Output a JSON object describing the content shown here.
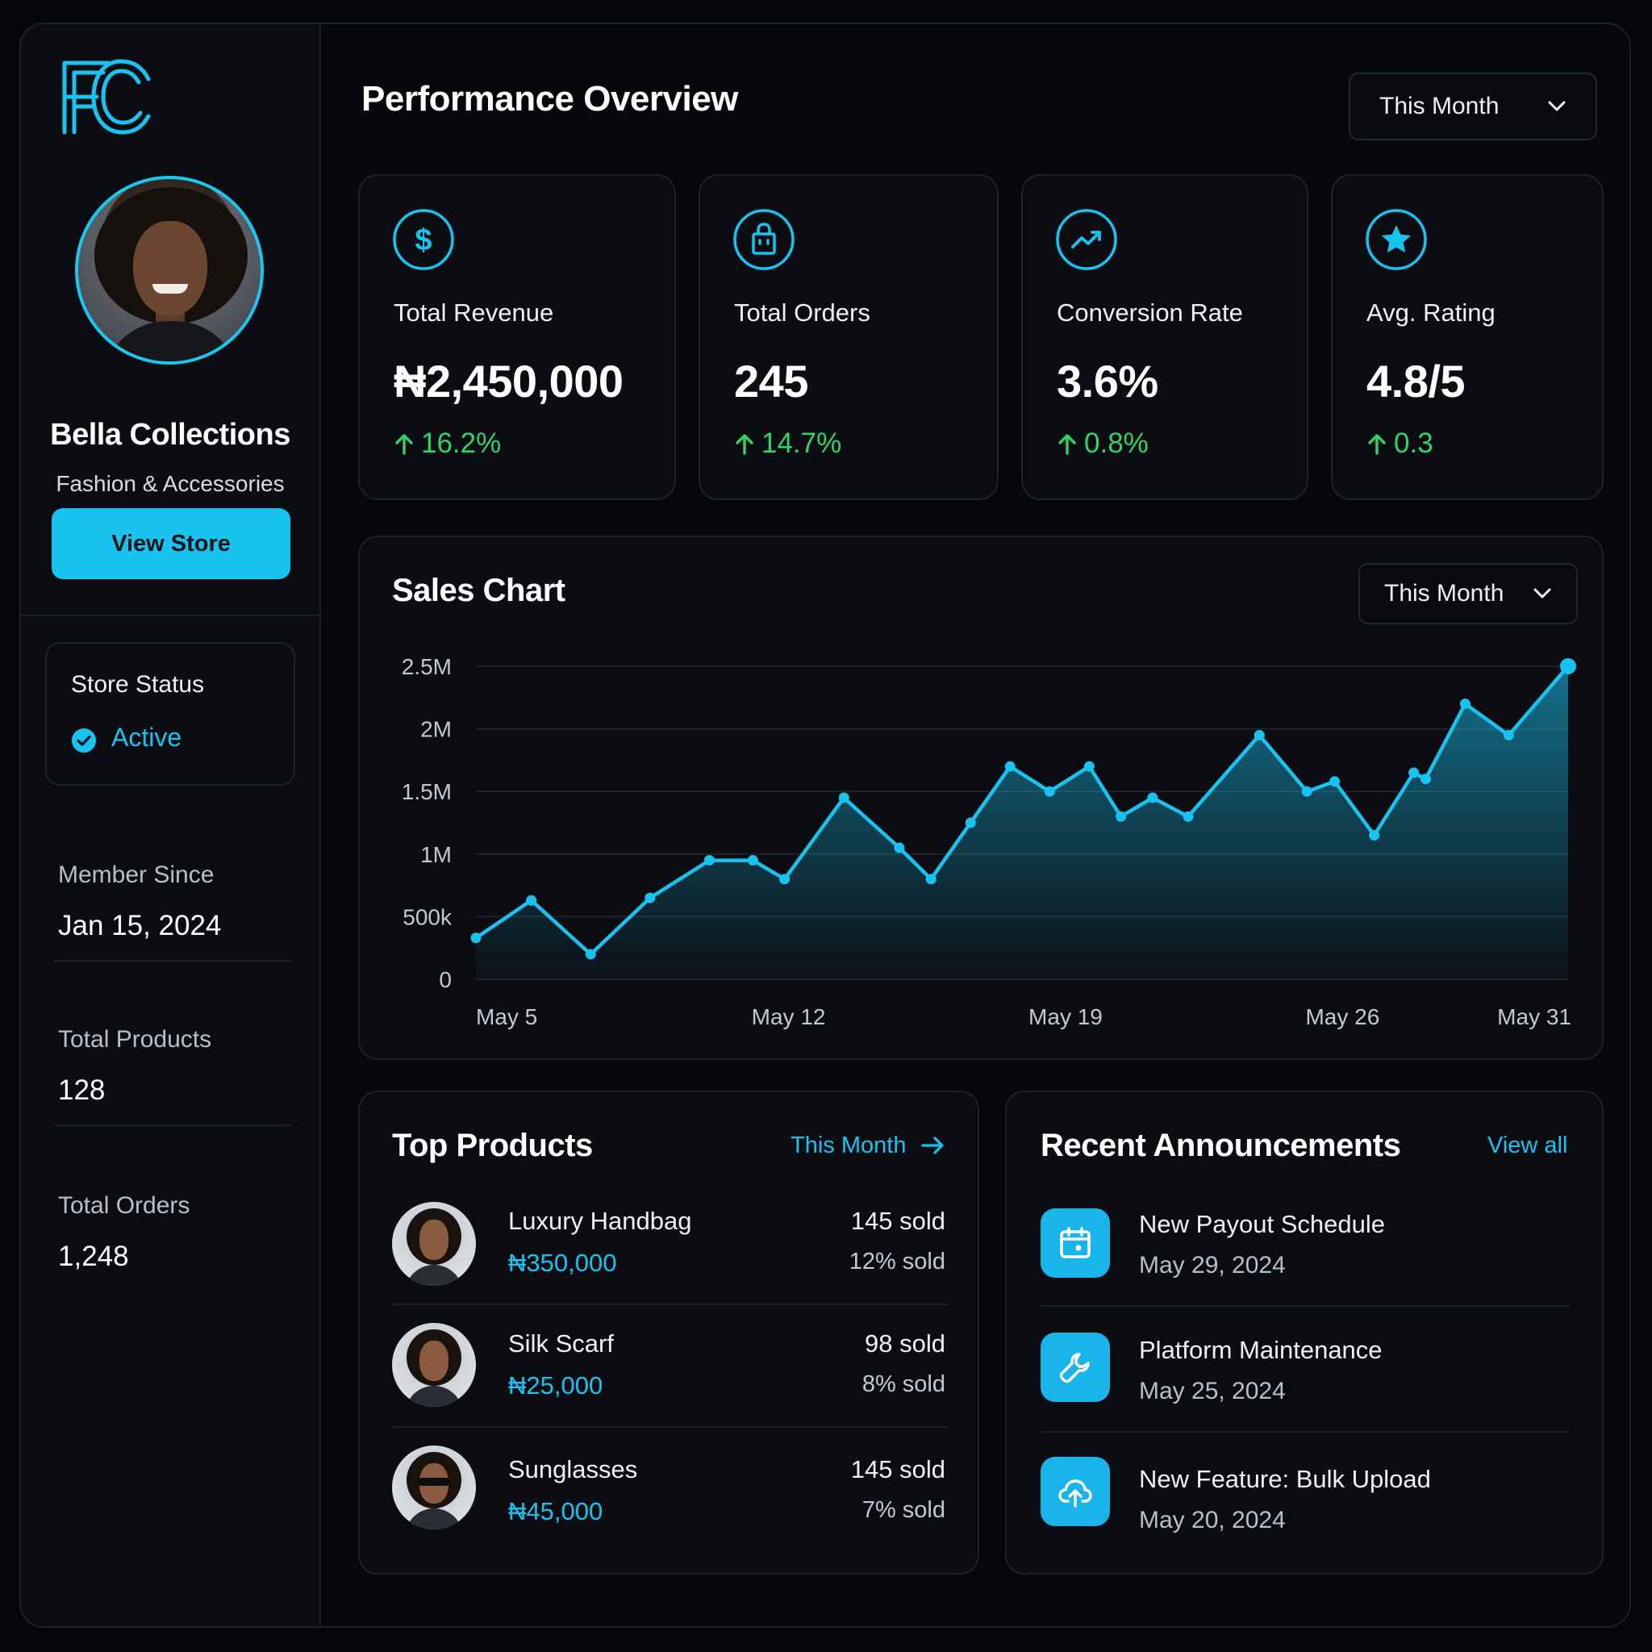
{
  "sidebar": {
    "logo": "FC",
    "store_name": "Bella Collections",
    "store_category": "Fashion & Accessories",
    "view_store_label": "View Store",
    "status_label": "Store Status",
    "status_value": "Active",
    "member_since_label": "Member Since",
    "member_since_value": "Jan 15, 2024",
    "total_products_label": "Total Products",
    "total_products_value": "128",
    "total_orders_label": "Total Orders",
    "total_orders_value": "1,248"
  },
  "header": {
    "title": "Performance Overview",
    "period": "This Month"
  },
  "kpis": [
    {
      "icon": "dollar-icon",
      "label": "Total Revenue",
      "value": "₦2,450,000",
      "change": "16.2%"
    },
    {
      "icon": "shopping-bag-icon",
      "label": "Total Orders",
      "value": "245",
      "change": "14.7%"
    },
    {
      "icon": "trend-up-icon",
      "label": "Conversion Rate",
      "value": "3.6%",
      "change": "0.8%"
    },
    {
      "icon": "star-icon",
      "label": "Avg. Rating",
      "value": "4.8/5",
      "change": "0.3"
    }
  ],
  "sales_chart": {
    "title": "Sales Chart",
    "period": "This Month"
  },
  "chart_data": {
    "type": "area",
    "title": "Sales Chart",
    "xlabel": "",
    "ylabel": "",
    "ylim": [
      0,
      2500000
    ],
    "y_ticks": [
      0,
      500000,
      1000000,
      1500000,
      2000000,
      2500000
    ],
    "y_tick_labels": [
      "0",
      "500k",
      "1M",
      "1.5M",
      "2M",
      "2.5M"
    ],
    "x_tick_labels": [
      "May 5",
      "May 12",
      "May 19",
      "May 26",
      "May 31"
    ],
    "x_tick_positions": [
      5,
      12,
      19,
      26,
      31
    ],
    "xlim": [
      4.1,
      31.7
    ],
    "grid": true,
    "accent_color": "#19c3f0",
    "series": [
      {
        "x": [
          4.1,
          5.5,
          7.0,
          8.5,
          10.0,
          11.1,
          11.9,
          13.4,
          14.8,
          15.6,
          16.6,
          17.6,
          18.6,
          19.6,
          20.4,
          21.2,
          22.1,
          23.9,
          25.1,
          25.8,
          26.8,
          27.8,
          28.1,
          29.1,
          30.2,
          31.7
        ],
        "y": [
          330000,
          630000,
          200000,
          650000,
          950000,
          950000,
          800000,
          1450000,
          1050000,
          800000,
          1250000,
          1700000,
          1500000,
          1700000,
          1300000,
          1450000,
          1300000,
          1950000,
          1500000,
          1580000,
          1150000,
          1650000,
          1600000,
          2200000,
          1950000,
          2500000
        ]
      }
    ]
  },
  "top_products": {
    "title": "Top Products",
    "link": "This Month",
    "items": [
      {
        "name": "Luxury Handbag",
        "price": "₦350,000",
        "sold": "145 sold",
        "pct": "12% sold"
      },
      {
        "name": "Silk Scarf",
        "price": "₦25,000",
        "sold": "98 sold",
        "pct": "8% sold"
      },
      {
        "name": "Sunglasses",
        "price": "₦45,000",
        "sold": "145 sold",
        "pct": "7% sold"
      }
    ]
  },
  "announcements": {
    "title": "Recent Announcements",
    "link": "View all",
    "items": [
      {
        "icon": "calendar-icon",
        "title": "New Payout Schedule",
        "date": "May 29, 2024"
      },
      {
        "icon": "wrench-icon",
        "title": "Platform Maintenance",
        "date": "May 25, 2024"
      },
      {
        "icon": "cloud-upload-icon",
        "title": "New Feature: Bulk Upload",
        "date": "May 20, 2024"
      }
    ]
  }
}
